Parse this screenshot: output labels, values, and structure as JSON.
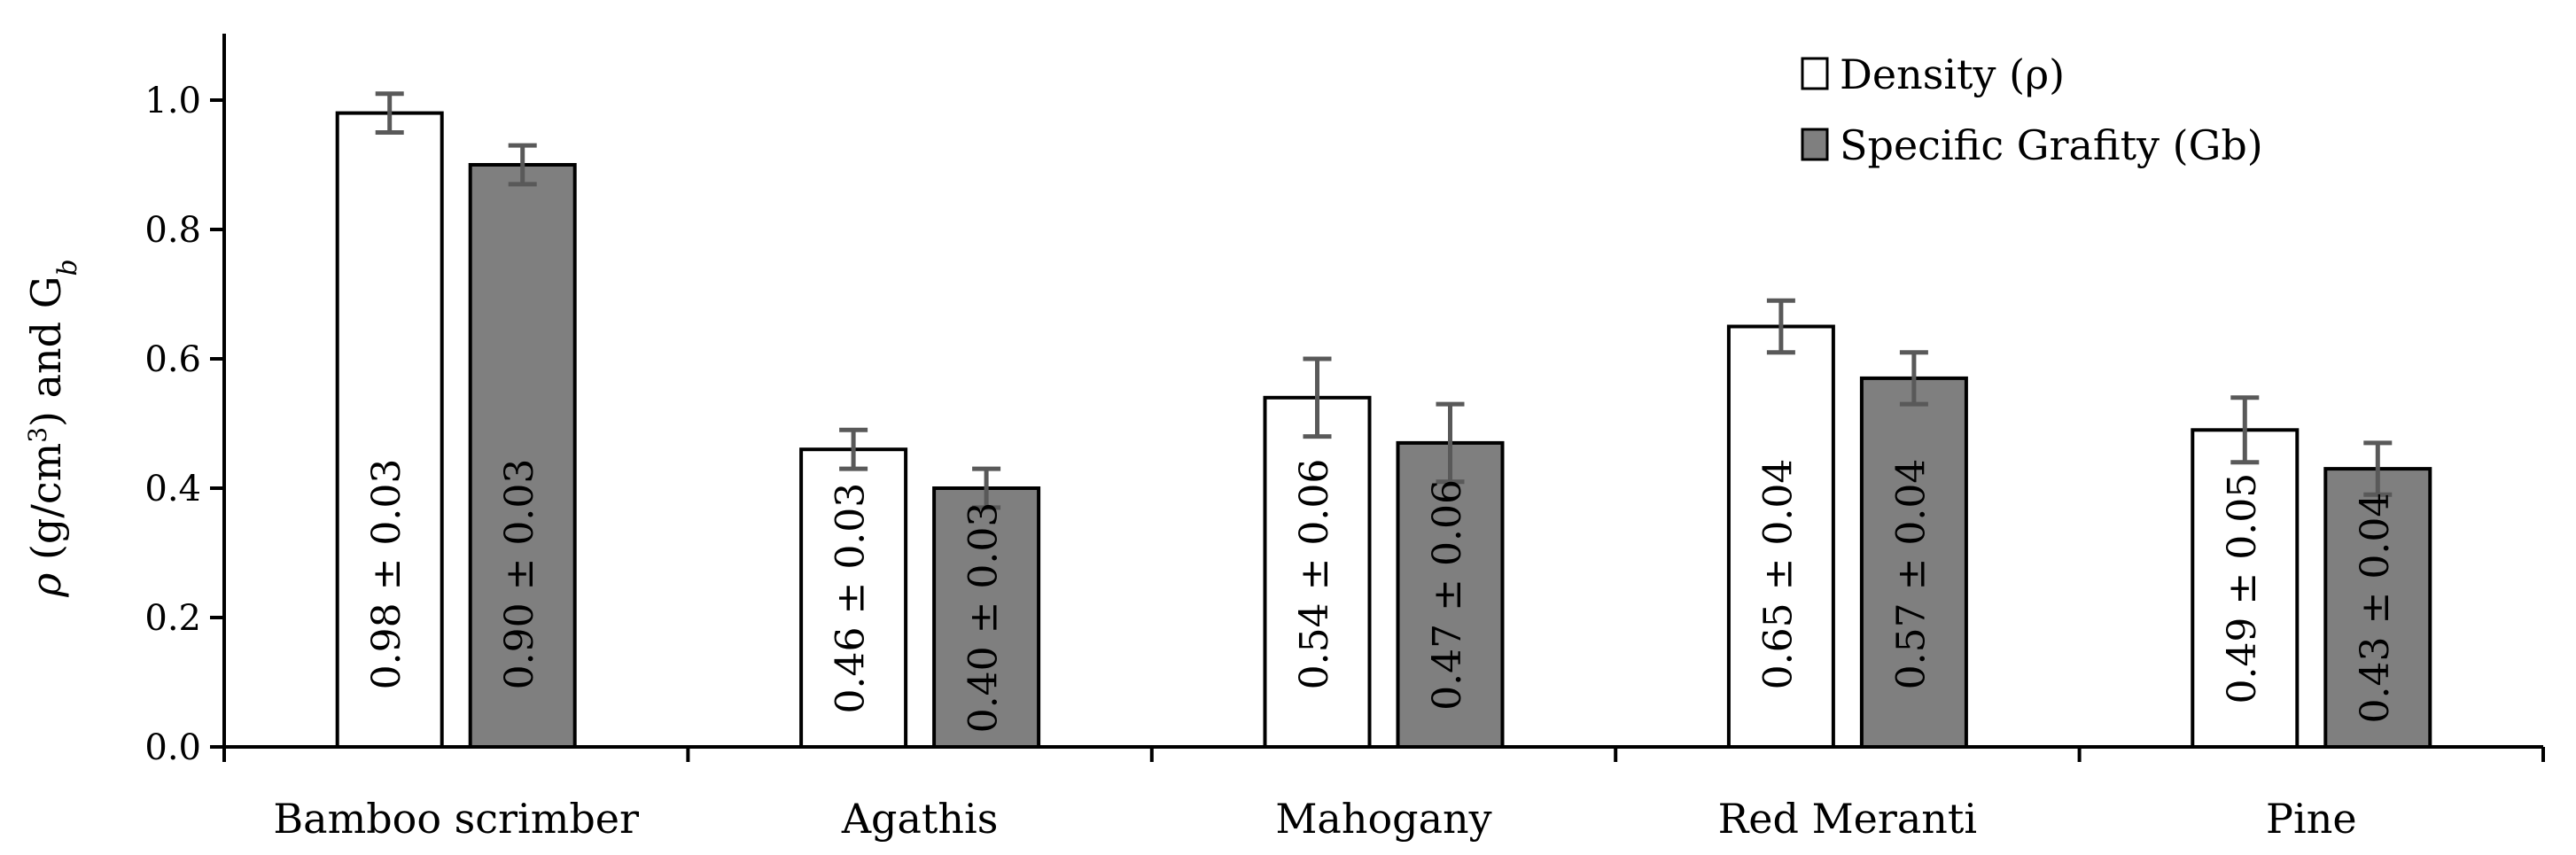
{
  "chart_data": {
    "type": "bar",
    "categories": [
      "Bamboo scrimber",
      "Agathis",
      "Mahogany",
      "Red Meranti",
      "Pine"
    ],
    "series": [
      {
        "name": "Density (ρ)",
        "values": [
          0.98,
          0.46,
          0.54,
          0.65,
          0.49
        ],
        "errors": [
          0.03,
          0.03,
          0.06,
          0.04,
          0.05
        ],
        "labels": [
          "0.98 ± 0.03",
          "0.46 ± 0.03",
          "0.54 ± 0.06",
          "0.65 ± 0.04",
          "0.49 ± 0.05"
        ],
        "color": "#ffffff"
      },
      {
        "name": "Specific Grafity (Gb)",
        "values": [
          0.9,
          0.4,
          0.47,
          0.57,
          0.43
        ],
        "errors": [
          0.03,
          0.03,
          0.06,
          0.04,
          0.04
        ],
        "labels": [
          "0.90 ± 0.03",
          "0.40 ± 0.03",
          "0.47 ± 0.06",
          "0.57 ± 0.04",
          "0.43 ± 0.04"
        ],
        "color": "#7f7f7f"
      }
    ],
    "ylabel": {
      "rho": "ρ",
      "units": " (g/cm",
      "exp": "3",
      "rest": ") and G",
      "sub": "b"
    },
    "ylim": [
      0,
      1.1
    ],
    "yticks": [
      "0.0",
      "0.2",
      "0.4",
      "0.6",
      "0.8",
      "1.0"
    ],
    "grid": false,
    "legend_position": "top-right",
    "error_bar_color": "#595959"
  }
}
